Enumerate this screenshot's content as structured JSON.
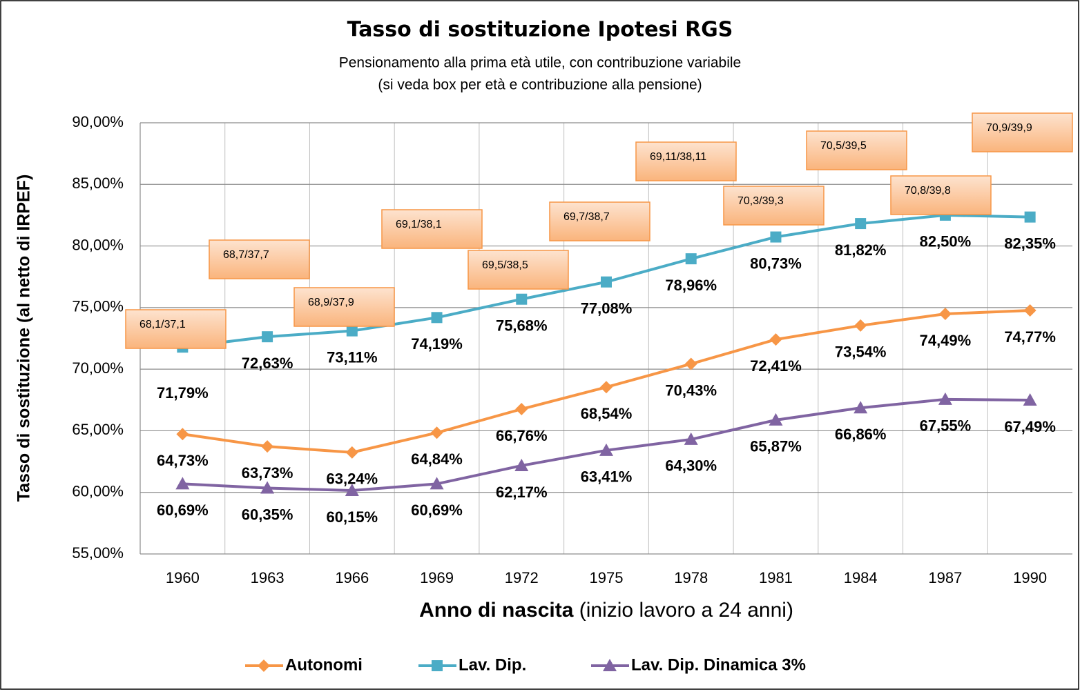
{
  "chart_data": {
    "type": "line",
    "title": "Tasso di sostituzione Ipotesi RGS",
    "subtitle": [
      "Pensionamento  alla prima età utile, con contribuzione variabile",
      "(si veda box per età e contribuzione alla pensione)"
    ],
    "ylabel": "Tasso di sostituzione (al netto di IRPEF)",
    "xlabel": {
      "main": "Anno di nascita",
      "note": "(inizio lavoro a 24 anni)"
    },
    "categories": [
      "1960",
      "1963",
      "1966",
      "1969",
      "1972",
      "1975",
      "1978",
      "1981",
      "1984",
      "1987",
      "1990"
    ],
    "ylim": [
      55,
      90
    ],
    "yticks": [
      {
        "value": 55,
        "label": "55,00%"
      },
      {
        "value": 60,
        "label": "60,00%"
      },
      {
        "value": 65,
        "label": "65,00%"
      },
      {
        "value": 70,
        "label": "70,00%"
      },
      {
        "value": 75,
        "label": "75,00%"
      },
      {
        "value": 80,
        "label": "80,00%"
      },
      {
        "value": 85,
        "label": "85,00%"
      },
      {
        "value": 90,
        "label": "90,00%"
      }
    ],
    "grid": true,
    "legend": "bottom",
    "series": [
      {
        "name": "Autonomi",
        "color": "#f79646",
        "marker": "diamond",
        "values": [
          64.73,
          63.73,
          63.24,
          64.84,
          66.76,
          68.54,
          70.43,
          72.41,
          73.54,
          74.49,
          74.77
        ],
        "value_labels": [
          "64,73%",
          "63,73%",
          "63,24%",
          "64,84%",
          "66,76%",
          "68,54%",
          "70,43%",
          "72,41%",
          "73,54%",
          "74,49%",
          "74,77%"
        ]
      },
      {
        "name": "Lav. Dip.",
        "color": "#4bacc6",
        "marker": "square",
        "values": [
          71.79,
          72.63,
          73.11,
          74.19,
          75.68,
          77.08,
          78.96,
          80.73,
          81.82,
          82.5,
          82.35
        ],
        "value_labels": [
          "71,79%",
          "72,63%",
          "73,11%",
          "74,19%",
          "75,68%",
          "77,08%",
          "78,96%",
          "80,73%",
          "81,82%",
          "82,50%",
          "82,35%"
        ]
      },
      {
        "name": "Lav. Dip. Dinamica 3%",
        "color": "#8064a2",
        "marker": "triangle",
        "values": [
          60.69,
          60.35,
          60.15,
          60.69,
          62.17,
          63.41,
          64.3,
          65.87,
          66.86,
          67.55,
          67.49
        ],
        "value_labels": [
          "60,69%",
          "60,35%",
          "60,15%",
          "60,69%",
          "62,17%",
          "63,41%",
          "64,30%",
          "65,87%",
          "66,86%",
          "67,55%",
          "67,49%"
        ]
      }
    ],
    "annotations": [
      "68,1/37,1",
      "68,7/37,7",
      "68,9/37,9",
      "69,1/38,1",
      "69,5/38,5",
      "69,7/38,7",
      "69,11/38,11",
      "70,3/39,3",
      "70,5/39,5",
      "70,8/39,8",
      "70,9/39,9"
    ]
  }
}
